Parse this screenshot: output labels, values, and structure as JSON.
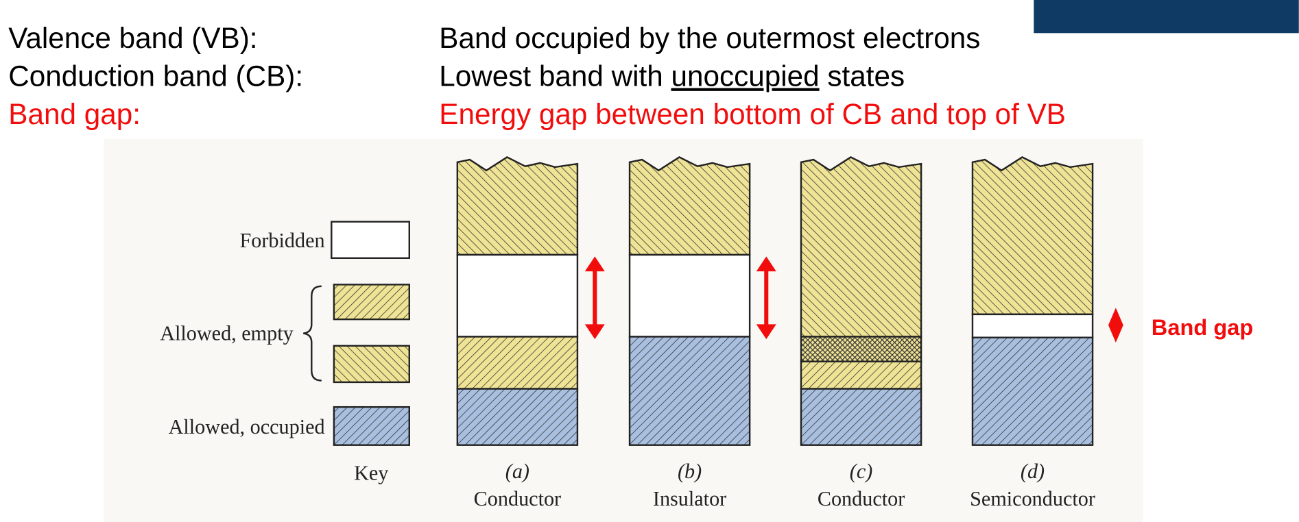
{
  "definitions": [
    {
      "term": "Valence band (VB):",
      "definition": [
        "Band occupied by the outermost electrons"
      ]
    },
    {
      "term": "Conduction band (CB):",
      "definition": [
        "Lowest band with ",
        "unoccupied",
        " states"
      ]
    },
    {
      "term": "Band gap:",
      "definition": [
        "Energy gap between bottom of CB and top of VB"
      ]
    }
  ],
  "figure": {
    "key": {
      "forbidden": "Forbidden",
      "allowed_empty": "Allowed, empty",
      "allowed_occupied": "Allowed, occupied",
      "caption": "Key"
    },
    "panels": [
      {
        "letter": "(a)",
        "label": "Conductor"
      },
      {
        "letter": "(b)",
        "label": "Insulator"
      },
      {
        "letter": "(c)",
        "label": "Conductor"
      },
      {
        "letter": "(d)",
        "label": "Semiconductor"
      }
    ],
    "annotation": "Band gap"
  }
}
